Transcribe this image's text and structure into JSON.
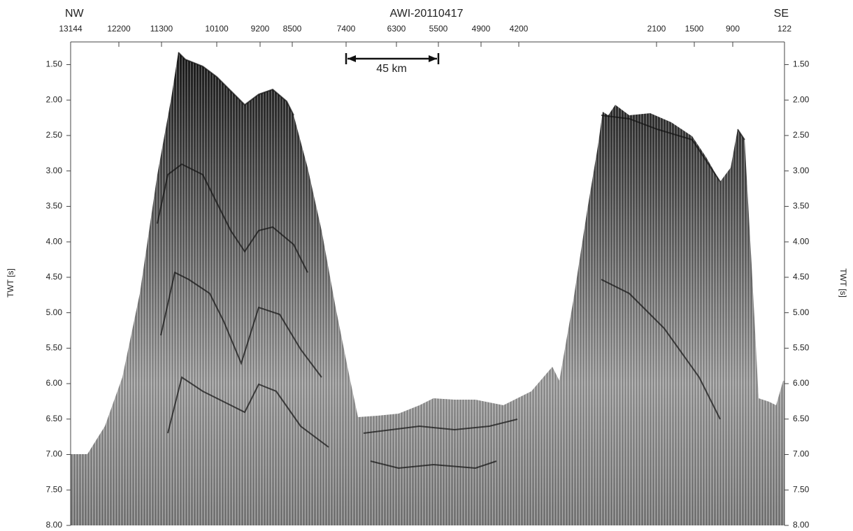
{
  "chart_data": {
    "type": "seismic-profile",
    "title": "AWI-20110417",
    "left_label": "NW",
    "right_label": "SE",
    "xticks": [
      13144,
      12200,
      11300,
      10100,
      9200,
      8500,
      7400,
      6300,
      5500,
      4900,
      4200,
      2100,
      1500,
      900,
      122
    ],
    "ylabel": "TWT [s]",
    "y2label": "TWT [s]",
    "ylim": [
      8.0,
      1.18
    ],
    "yticks": [
      {
        "value": 1.5,
        "label": "1.50"
      },
      {
        "value": 2.0,
        "label": "2.00"
      },
      {
        "value": 2.5,
        "label": "2.50"
      },
      {
        "value": 3.0,
        "label": "3.00"
      },
      {
        "value": 3.5,
        "label": "3.50"
      },
      {
        "value": 4.0,
        "label": "4.00"
      },
      {
        "value": 4.5,
        "label": "4.50"
      },
      {
        "value": 5.0,
        "label": "5.00"
      },
      {
        "value": 5.5,
        "label": "5.50"
      },
      {
        "value": 6.0,
        "label": "6.00"
      },
      {
        "value": 6.5,
        "label": "6.50"
      },
      {
        "value": 7.0,
        "label": "7.00"
      },
      {
        "value": 7.5,
        "label": "7.50"
      },
      {
        "value": 8.0,
        "label": "8.00"
      }
    ],
    "y2lim": [
      8.0,
      1.18
    ],
    "y2ticks": [
      {
        "value": 1.5,
        "label": "1.50"
      },
      {
        "value": 2.0,
        "label": "2.00"
      },
      {
        "value": 2.5,
        "label": "2.50"
      },
      {
        "value": 3.0,
        "label": "3.00"
      },
      {
        "value": 3.5,
        "label": "3.50"
      },
      {
        "value": 4.0,
        "label": "4.00"
      },
      {
        "value": 4.5,
        "label": "4.50"
      },
      {
        "value": 5.0,
        "label": "5.00"
      },
      {
        "value": 5.5,
        "label": "5.50"
      },
      {
        "value": 6.0,
        "label": "6.00"
      },
      {
        "value": 6.5,
        "label": "6.50"
      },
      {
        "value": 7.0,
        "label": "7.00"
      },
      {
        "value": 7.5,
        "label": "7.50"
      },
      {
        "value": 8.0,
        "label": "8.00"
      }
    ],
    "scale_bar_label": "45 km"
  }
}
